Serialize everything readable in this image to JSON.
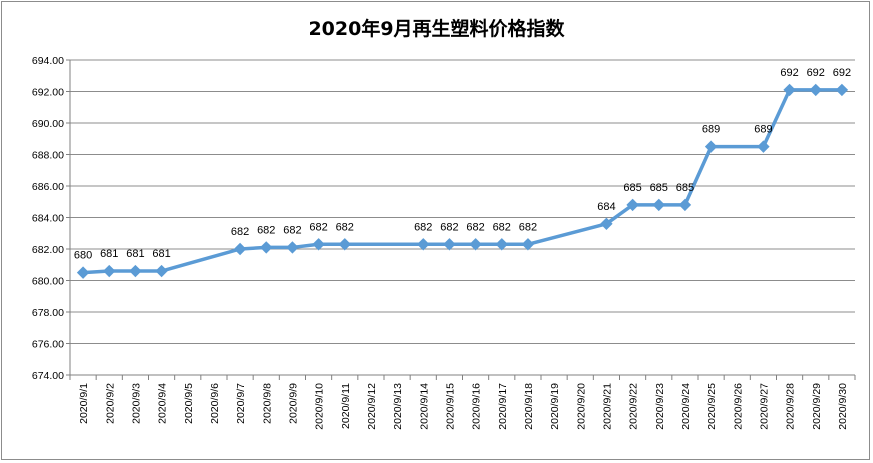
{
  "chart_data": {
    "type": "line",
    "title": "2020年9月再生塑料价格指数",
    "xlabel": "",
    "ylabel": "",
    "ylim": [
      674,
      694
    ],
    "y_ticks": [
      "674.00",
      "676.00",
      "678.00",
      "680.00",
      "682.00",
      "684.00",
      "686.00",
      "688.00",
      "690.00",
      "692.00",
      "694.00"
    ],
    "grid": true,
    "categories": [
      "2020/9/1",
      "2020/9/2",
      "2020/9/3",
      "2020/9/4",
      "2020/9/5",
      "2020/9/6",
      "2020/9/7",
      "2020/9/8",
      "2020/9/9",
      "2020/9/10",
      "2020/9/11",
      "2020/9/12",
      "2020/9/13",
      "2020/9/14",
      "2020/9/15",
      "2020/9/16",
      "2020/9/17",
      "2020/9/18",
      "2020/9/19",
      "2020/9/20",
      "2020/9/21",
      "2020/9/22",
      "2020/9/23",
      "2020/9/24",
      "2020/9/25",
      "2020/9/26",
      "2020/9/27",
      "2020/9/28",
      "2020/9/29",
      "2020/9/30"
    ],
    "series": [
      {
        "color": "#5b9bd5",
        "values": [
          680.5,
          680.6,
          680.6,
          680.6,
          null,
          null,
          682.0,
          682.1,
          682.1,
          682.3,
          682.3,
          null,
          null,
          682.3,
          682.3,
          682.3,
          682.3,
          682.3,
          null,
          null,
          683.6,
          684.8,
          684.8,
          684.8,
          688.5,
          null,
          688.5,
          692.1,
          692.1,
          692.1
        ],
        "labels": [
          "680",
          "681",
          "681",
          "681",
          null,
          null,
          "682",
          "682",
          "682",
          "682",
          "682",
          null,
          null,
          "682",
          "682",
          "682",
          "682",
          "682",
          null,
          null,
          "684",
          "685",
          "685",
          "685",
          "689",
          null,
          "689",
          "692",
          "692",
          "692"
        ]
      }
    ]
  }
}
